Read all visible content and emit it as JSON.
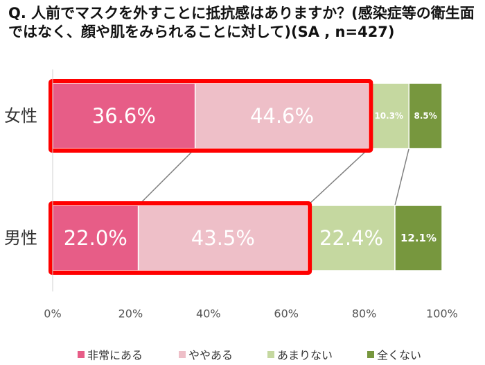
{
  "chart_data": {
    "type": "bar",
    "orientation": "horizontal",
    "stacked": true,
    "normalized": true,
    "title": "Q. 人前でマスクを外すことに抵抗感はありますか？(感染症等の衛生面ではなく、顔や肌をみられることに対して)(SA , n=427)",
    "categories": [
      "女性",
      "男性"
    ],
    "series": [
      {
        "name": "非常にある",
        "color": "#e75d87",
        "values": [
          36.6,
          22.0
        ]
      },
      {
        "name": "ややある",
        "color": "#eebfc8",
        "values": [
          44.6,
          43.5
        ]
      },
      {
        "name": "あまりない",
        "color": "#c5d8a0",
        "values": [
          10.3,
          22.4
        ]
      },
      {
        "name": "全くない",
        "color": "#77973e",
        "values": [
          8.5,
          12.1
        ]
      }
    ],
    "data_labels": [
      [
        "36.6%",
        "44.6%",
        "10.3%",
        "8.5%"
      ],
      [
        "22.0%",
        "43.5%",
        "22.4%",
        "12.1%"
      ]
    ],
    "x_ticks": [
      "0%",
      "20%",
      "40%",
      "60%",
      "80%",
      "100%"
    ],
    "xlim": [
      0,
      100
    ],
    "legend_position": "bottom",
    "highlight": {
      "color": "#ff0000",
      "series_count": 2
    }
  }
}
